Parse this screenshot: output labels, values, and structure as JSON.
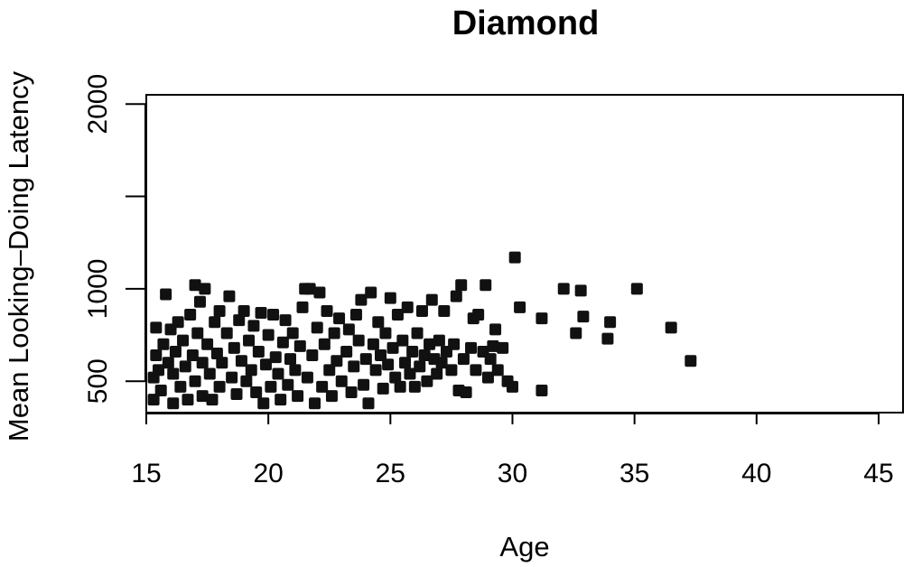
{
  "chart_data": {
    "type": "scatter",
    "title": "Diamond",
    "xlabel": "Age",
    "ylabel": "Mean Looking–Doing Latency",
    "xlim": [
      15,
      46
    ],
    "ylim": [
      330,
      2050
    ],
    "x_ticks": [
      15,
      20,
      25,
      30,
      35,
      40,
      45
    ],
    "x_tick_labels": [
      "15",
      "20",
      "25",
      "30",
      "35",
      "40",
      "45"
    ],
    "y_ticks": [
      500,
      1000,
      1500,
      2000
    ],
    "y_tick_labels": [
      "500",
      "1000",
      "",
      "2000"
    ],
    "grid": false,
    "legend": "none",
    "marker": "filled-square",
    "marker_color": "#111111",
    "points": [
      [
        15.3,
        400
      ],
      [
        15.3,
        520
      ],
      [
        15.4,
        640
      ],
      [
        15.4,
        790
      ],
      [
        15.5,
        560
      ],
      [
        15.6,
        450
      ],
      [
        15.7,
        700
      ],
      [
        15.8,
        970
      ],
      [
        15.9,
        600
      ],
      [
        16.0,
        780
      ],
      [
        16.1,
        380
      ],
      [
        16.1,
        540
      ],
      [
        16.2,
        660
      ],
      [
        16.3,
        820
      ],
      [
        16.4,
        470
      ],
      [
        16.5,
        720
      ],
      [
        16.6,
        580
      ],
      [
        16.7,
        400
      ],
      [
        16.8,
        860
      ],
      [
        16.9,
        640
      ],
      [
        17.0,
        1020
      ],
      [
        17.0,
        500
      ],
      [
        17.1,
        760
      ],
      [
        17.2,
        930
      ],
      [
        17.3,
        420
      ],
      [
        17.3,
        600
      ],
      [
        17.4,
        1000
      ],
      [
        17.5,
        700
      ],
      [
        17.6,
        540
      ],
      [
        17.7,
        400
      ],
      [
        17.8,
        820
      ],
      [
        17.9,
        650
      ],
      [
        18.0,
        880
      ],
      [
        18.0,
        470
      ],
      [
        18.1,
        600
      ],
      [
        18.3,
        760
      ],
      [
        18.4,
        960
      ],
      [
        18.5,
        520
      ],
      [
        18.6,
        680
      ],
      [
        18.7,
        430
      ],
      [
        18.8,
        830
      ],
      [
        18.9,
        610
      ],
      [
        19.0,
        880
      ],
      [
        19.1,
        500
      ],
      [
        19.2,
        720
      ],
      [
        19.3,
        560
      ],
      [
        19.4,
        800
      ],
      [
        19.5,
        440
      ],
      [
        19.6,
        660
      ],
      [
        19.7,
        870
      ],
      [
        19.8,
        380
      ],
      [
        19.9,
        590
      ],
      [
        20.0,
        750
      ],
      [
        20.1,
        470
      ],
      [
        20.2,
        860
      ],
      [
        20.3,
        630
      ],
      [
        20.4,
        540
      ],
      [
        20.5,
        400
      ],
      [
        20.6,
        710
      ],
      [
        20.7,
        830
      ],
      [
        20.8,
        480
      ],
      [
        20.9,
        620
      ],
      [
        21.0,
        760
      ],
      [
        21.1,
        560
      ],
      [
        21.2,
        420
      ],
      [
        21.3,
        690
      ],
      [
        21.4,
        900
      ],
      [
        21.5,
        1000
      ],
      [
        21.6,
        520
      ],
      [
        21.7,
        1000
      ],
      [
        21.8,
        640
      ],
      [
        21.9,
        380
      ],
      [
        22.0,
        790
      ],
      [
        22.1,
        980
      ],
      [
        22.2,
        470
      ],
      [
        22.3,
        700
      ],
      [
        22.4,
        880
      ],
      [
        22.5,
        560
      ],
      [
        22.6,
        420
      ],
      [
        22.7,
        760
      ],
      [
        22.8,
        610
      ],
      [
        22.9,
        840
      ],
      [
        23.0,
        500
      ],
      [
        23.2,
        660
      ],
      [
        23.3,
        780
      ],
      [
        23.4,
        440
      ],
      [
        23.5,
        580
      ],
      [
        23.6,
        860
      ],
      [
        23.7,
        720
      ],
      [
        23.8,
        940
      ],
      [
        23.9,
        480
      ],
      [
        24.0,
        620
      ],
      [
        24.1,
        380
      ],
      [
        24.2,
        980
      ],
      [
        24.3,
        700
      ],
      [
        24.4,
        560
      ],
      [
        24.5,
        820
      ],
      [
        24.6,
        640
      ],
      [
        24.7,
        460
      ],
      [
        24.8,
        760
      ],
      [
        24.9,
        590
      ],
      [
        25.0,
        950
      ],
      [
        25.1,
        680
      ],
      [
        25.2,
        520
      ],
      [
        25.3,
        860
      ],
      [
        25.4,
        470
      ],
      [
        25.5,
        720
      ],
      [
        25.6,
        600
      ],
      [
        25.7,
        900
      ],
      [
        25.8,
        540
      ],
      [
        25.9,
        660
      ],
      [
        26.0,
        470
      ],
      [
        26.1,
        760
      ],
      [
        26.2,
        580
      ],
      [
        26.3,
        880
      ],
      [
        26.4,
        640
      ],
      [
        26.5,
        500
      ],
      [
        26.6,
        700
      ],
      [
        26.7,
        940
      ],
      [
        26.8,
        620
      ],
      [
        26.9,
        540
      ],
      [
        27.0,
        720
      ],
      [
        27.1,
        600
      ],
      [
        27.2,
        880
      ],
      [
        27.3,
        660
      ],
      [
        27.5,
        560
      ],
      [
        27.6,
        700
      ],
      [
        27.7,
        960
      ],
      [
        27.8,
        450
      ],
      [
        27.9,
        1020
      ],
      [
        28.0,
        620
      ],
      [
        28.1,
        440
      ],
      [
        28.3,
        680
      ],
      [
        28.4,
        840
      ],
      [
        28.5,
        560
      ],
      [
        28.6,
        860
      ],
      [
        28.8,
        660
      ],
      [
        28.9,
        1020
      ],
      [
        29.0,
        520
      ],
      [
        29.1,
        620
      ],
      [
        29.2,
        690
      ],
      [
        29.3,
        780
      ],
      [
        29.4,
        560
      ],
      [
        29.6,
        680
      ],
      [
        29.8,
        500
      ],
      [
        30.0,
        470
      ],
      [
        30.1,
        1170
      ],
      [
        30.3,
        900
      ],
      [
        31.2,
        450
      ],
      [
        31.2,
        840
      ],
      [
        32.1,
        1000
      ],
      [
        32.6,
        760
      ],
      [
        32.8,
        990
      ],
      [
        32.9,
        850
      ],
      [
        33.9,
        730
      ],
      [
        34.0,
        820
      ],
      [
        35.1,
        1000
      ],
      [
        36.5,
        790
      ],
      [
        37.3,
        610
      ]
    ]
  }
}
